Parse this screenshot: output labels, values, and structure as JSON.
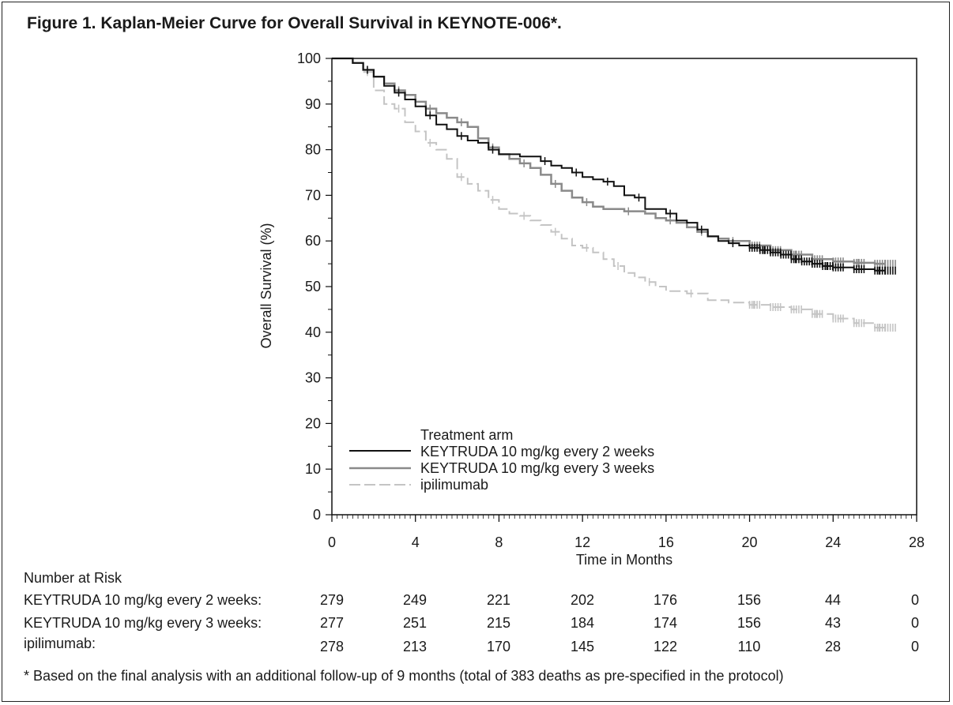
{
  "title": "Figure 1. Kaplan-Meier Curve for Overall Survival in KEYNOTE-006*.",
  "chart_data": {
    "type": "line",
    "subtype": "kaplan-meier",
    "xlabel": "Time in Months",
    "ylabel": "Overall Survival (%)",
    "xlim": [
      0,
      28
    ],
    "ylim": [
      0,
      100
    ],
    "x_ticks": [
      0,
      4,
      8,
      12,
      16,
      20,
      24,
      28
    ],
    "y_ticks": [
      0,
      10,
      20,
      30,
      40,
      50,
      60,
      70,
      80,
      90,
      100
    ],
    "grid": false,
    "legend": {
      "title": "Treatment arm",
      "placement": "bottom-left"
    },
    "series": [
      {
        "name": "KEYTRUDA 10 mg/kg every 2 weeks",
        "color": "#111111",
        "style": "solid",
        "points": [
          [
            0,
            100
          ],
          [
            1.0,
            99
          ],
          [
            1.5,
            97.5
          ],
          [
            2.0,
            96
          ],
          [
            2.5,
            94
          ],
          [
            3.0,
            92.5
          ],
          [
            3.5,
            91
          ],
          [
            4.0,
            89.5
          ],
          [
            4.5,
            87.5
          ],
          [
            5.0,
            85.5
          ],
          [
            5.5,
            84.5
          ],
          [
            6.0,
            83
          ],
          [
            6.5,
            82
          ],
          [
            7.0,
            81.5
          ],
          [
            7.5,
            80
          ],
          [
            8.0,
            79
          ],
          [
            9.0,
            78.5
          ],
          [
            10.0,
            77.5
          ],
          [
            10.5,
            76.5
          ],
          [
            11.0,
            76
          ],
          [
            11.5,
            75
          ],
          [
            12.0,
            74
          ],
          [
            12.5,
            73.5
          ],
          [
            13.0,
            73
          ],
          [
            13.5,
            72
          ],
          [
            14.0,
            70
          ],
          [
            14.5,
            69.5
          ],
          [
            15.0,
            67
          ],
          [
            15.5,
            67
          ],
          [
            16.0,
            66
          ],
          [
            16.5,
            64.5
          ],
          [
            17.0,
            64
          ],
          [
            17.5,
            62.5
          ],
          [
            18.0,
            61
          ],
          [
            18.5,
            60
          ],
          [
            19.0,
            59.5
          ],
          [
            19.5,
            59
          ],
          [
            20.0,
            58.5
          ],
          [
            20.5,
            58
          ],
          [
            21.0,
            57.5
          ],
          [
            21.5,
            57
          ],
          [
            22.0,
            56
          ],
          [
            22.5,
            55.5
          ],
          [
            23.0,
            55
          ],
          [
            23.5,
            54.5
          ],
          [
            24.0,
            54.2
          ],
          [
            25.0,
            53.8
          ],
          [
            26.0,
            53.5
          ],
          [
            26.5,
            53.5
          ]
        ]
      },
      {
        "name": "KEYTRUDA 10 mg/kg every 3 weeks",
        "color": "#8a8a8a",
        "style": "solid",
        "points": [
          [
            0,
            100
          ],
          [
            1.0,
            99
          ],
          [
            1.5,
            97.5
          ],
          [
            2.0,
            96
          ],
          [
            2.5,
            94.5
          ],
          [
            3.0,
            93
          ],
          [
            3.5,
            92
          ],
          [
            4.0,
            90.5
          ],
          [
            4.5,
            89
          ],
          [
            5.0,
            88
          ],
          [
            5.5,
            87
          ],
          [
            6.0,
            86
          ],
          [
            6.5,
            85
          ],
          [
            7.0,
            82.5
          ],
          [
            7.5,
            80.5
          ],
          [
            8.0,
            79
          ],
          [
            8.5,
            78
          ],
          [
            9.0,
            77
          ],
          [
            9.5,
            76
          ],
          [
            10.0,
            74.5
          ],
          [
            10.5,
            72.5
          ],
          [
            11.0,
            71
          ],
          [
            11.5,
            69.5
          ],
          [
            12.0,
            68.5
          ],
          [
            12.5,
            67.5
          ],
          [
            13.0,
            67
          ],
          [
            14.0,
            66.5
          ],
          [
            15.0,
            66
          ],
          [
            15.5,
            65
          ],
          [
            16.0,
            64.5
          ],
          [
            16.5,
            64
          ],
          [
            17.0,
            63
          ],
          [
            17.5,
            62
          ],
          [
            18.0,
            61
          ],
          [
            18.5,
            60.5
          ],
          [
            19.0,
            60
          ],
          [
            20.0,
            59
          ],
          [
            21.0,
            58
          ],
          [
            22.0,
            57
          ],
          [
            23.0,
            56
          ],
          [
            24.0,
            55.5
          ],
          [
            25.0,
            55.2
          ],
          [
            26.0,
            55
          ],
          [
            26.5,
            55
          ]
        ]
      },
      {
        "name": "ipilimumab",
        "color": "#c4c4c4",
        "style": "dashed",
        "points": [
          [
            0,
            100
          ],
          [
            1.0,
            99
          ],
          [
            1.5,
            97
          ],
          [
            2.0,
            93
          ],
          [
            2.5,
            90
          ],
          [
            3.0,
            89
          ],
          [
            3.5,
            86
          ],
          [
            4.0,
            84
          ],
          [
            4.5,
            81.5
          ],
          [
            5.0,
            80
          ],
          [
            5.5,
            78
          ],
          [
            6.0,
            74
          ],
          [
            6.5,
            72.5
          ],
          [
            7.0,
            71
          ],
          [
            7.5,
            69
          ],
          [
            8.0,
            67
          ],
          [
            8.5,
            66
          ],
          [
            9.0,
            65.5
          ],
          [
            9.5,
            64.5
          ],
          [
            10.0,
            63.5
          ],
          [
            10.5,
            62
          ],
          [
            11.0,
            60.5
          ],
          [
            11.5,
            59
          ],
          [
            12.0,
            58.5
          ],
          [
            12.5,
            57.5
          ],
          [
            13.0,
            56
          ],
          [
            13.5,
            54.5
          ],
          [
            14.0,
            53
          ],
          [
            14.5,
            52
          ],
          [
            15.0,
            51
          ],
          [
            15.5,
            50
          ],
          [
            16.0,
            49
          ],
          [
            17.0,
            48.5
          ],
          [
            18.0,
            47
          ],
          [
            19.0,
            46.5
          ],
          [
            20.0,
            46
          ],
          [
            21.0,
            45.5
          ],
          [
            22.0,
            45
          ],
          [
            23.0,
            44
          ],
          [
            24.0,
            43
          ],
          [
            25.0,
            42
          ],
          [
            26.0,
            41
          ],
          [
            26.5,
            41
          ]
        ]
      }
    ]
  },
  "risk_table": {
    "heading": "Number at Risk",
    "timepoints": [
      0,
      4,
      8,
      12,
      16,
      20,
      24,
      28
    ],
    "rows": [
      {
        "label": "KEYTRUDA 10 mg/kg every 2 weeks:",
        "values": [
          "279",
          "249",
          "221",
          "202",
          "176",
          "156",
          "44",
          "0"
        ]
      },
      {
        "label": "KEYTRUDA 10 mg/kg every 3 weeks:",
        "values": [
          "277",
          "251",
          "215",
          "184",
          "174",
          "156",
          "43",
          "0"
        ]
      },
      {
        "label": "ipilimumab:",
        "values": [
          "278",
          "213",
          "170",
          "145",
          "122",
          "110",
          "28",
          "0"
        ]
      }
    ]
  },
  "footnote": "*  Based on the final analysis with an additional follow-up of 9 months (total of 383 deaths as pre-specified in the protocol)"
}
